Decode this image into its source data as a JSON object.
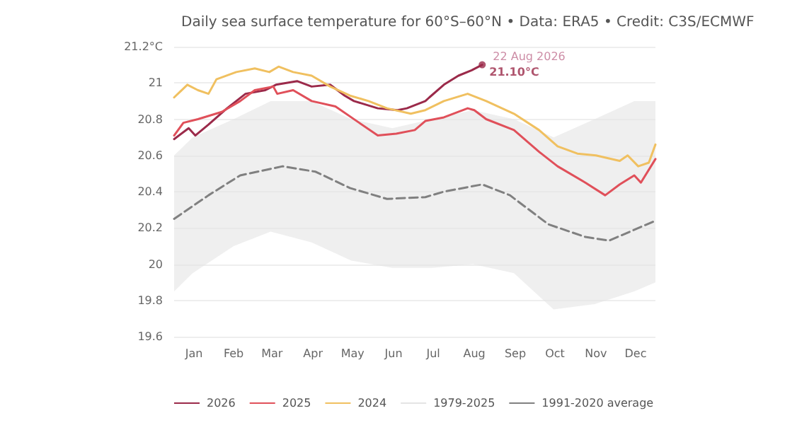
{
  "chart_data": {
    "type": "line",
    "title": "Daily sea surface temperature for 60°S–60°N • Data: ERA5 • Credit: C3S/ECMWF",
    "xlim": [
      "--01-01",
      "--12-31"
    ],
    "xticks": [
      {
        "value": "--01-16",
        "label": "Jan"
      },
      {
        "value": "--02-15",
        "label": "Feb"
      },
      {
        "value": "--03-16",
        "label": "Mar"
      },
      {
        "value": "--04-16",
        "label": "Apr"
      },
      {
        "value": "--05-16",
        "label": "May"
      },
      {
        "value": "--06-16",
        "label": "Jun"
      },
      {
        "value": "--07-16",
        "label": "Jul"
      },
      {
        "value": "--08-16",
        "label": "Aug"
      },
      {
        "value": "--09-16",
        "label": "Sep"
      },
      {
        "value": "--10-16",
        "label": "Oct"
      },
      {
        "value": "--11-16",
        "label": "Nov"
      },
      {
        "value": "--12-16",
        "label": "Dec"
      }
    ],
    "ylim": [
      19.6,
      21.2
    ],
    "yticks": [
      19.6,
      19.8,
      20,
      20.2,
      20.4,
      20.6,
      20.8,
      21,
      {
        "value": 21.2,
        "label": "21.2°C"
      }
    ],
    "grid": "y",
    "legend": "bottom",
    "marker": "none",
    "series": [
      {
        "name": "2026",
        "color": "#9b2a4a",
        "x": [
          "--01-01",
          "--01-12",
          "--01-17",
          "--01-27",
          "--02-10",
          "--02-24",
          "--03-11",
          "--03-19",
          "--04-04",
          "--04-15",
          "--04-29",
          "--05-10",
          "--05-17",
          "--06-04",
          "--06-19",
          "--06-26",
          "--07-10",
          "--07-13",
          "--07-24",
          "--08-04",
          "--08-14",
          "--08-22"
        ],
        "values": [
          20.69,
          20.75,
          20.71,
          20.77,
          20.86,
          20.94,
          20.96,
          20.99,
          21.01,
          20.98,
          20.99,
          20.93,
          20.9,
          20.86,
          20.85,
          20.86,
          20.9,
          20.92,
          20.99,
          21.04,
          21.07,
          21.1
        ]
      },
      {
        "name": "2025",
        "color": "#e0505a",
        "x": [
          "--01-01",
          "--01-08",
          "--01-19",
          "--02-06",
          "--02-20",
          "--03-03",
          "--03-17",
          "--03-20",
          "--04-01",
          "--04-15",
          "--05-03",
          "--05-21",
          "--06-04",
          "--06-18",
          "--07-02",
          "--07-10",
          "--07-24",
          "--08-11",
          "--08-16",
          "--08-25",
          "--09-15",
          "--10-04",
          "--10-18",
          "--11-08",
          "--11-23",
          "--12-04",
          "--12-15",
          "--12-20",
          "--12-31"
        ],
        "values": [
          20.71,
          20.78,
          20.8,
          20.84,
          20.9,
          20.96,
          20.98,
          20.94,
          20.96,
          20.9,
          20.87,
          20.78,
          20.71,
          20.72,
          20.74,
          20.79,
          20.81,
          20.86,
          20.85,
          20.8,
          20.74,
          20.62,
          20.54,
          20.45,
          20.38,
          20.44,
          20.49,
          20.45,
          20.58
        ]
      },
      {
        "name": "2024",
        "color": "#f0c060",
        "x": [
          "--01-01",
          "--01-11",
          "--01-19",
          "--01-27",
          "--02-02",
          "--02-17",
          "--03-03",
          "--03-14",
          "--03-21",
          "--04-01",
          "--04-15",
          "--04-29",
          "--05-14",
          "--05-28",
          "--06-11",
          "--06-29",
          "--07-10",
          "--07-24",
          "--08-11",
          "--08-25",
          "--09-15",
          "--10-04",
          "--10-18",
          "--11-02",
          "--11-16",
          "--12-04",
          "--12-10",
          "--12-18",
          "--12-26",
          "--12-31"
        ],
        "values": [
          20.92,
          20.99,
          20.96,
          20.94,
          21.02,
          21.06,
          21.08,
          21.06,
          21.09,
          21.06,
          21.04,
          20.98,
          20.93,
          20.9,
          20.86,
          20.83,
          20.85,
          20.9,
          20.94,
          20.9,
          20.83,
          20.74,
          20.65,
          20.61,
          20.6,
          20.57,
          20.6,
          20.54,
          20.56,
          20.66
        ]
      },
      {
        "name": "1979-2025",
        "color": "#e4e4e4",
        "x": [
          "--01-01",
          "--01-15",
          "--02-15",
          "--03-15",
          "--04-15",
          "--05-15",
          "--06-15",
          "--07-15",
          "--08-15",
          "--09-15",
          "--10-15",
          "--11-15",
          "--12-15",
          "--12-31"
        ],
        "lower": [
          19.85,
          19.95,
          20.1,
          20.18,
          20.12,
          20.02,
          19.98,
          19.98,
          20.0,
          19.95,
          19.75,
          19.78,
          19.85,
          19.9
        ],
        "upper": [
          20.6,
          20.7,
          20.8,
          20.9,
          20.9,
          20.8,
          20.75,
          20.8,
          20.85,
          20.8,
          20.7,
          20.8,
          20.9,
          20.9
        ],
        "values": [
          null,
          null,
          null,
          null,
          null,
          null,
          null,
          null,
          null,
          null,
          null,
          null,
          null,
          null
        ]
      },
      {
        "name": "1991-2020 average",
        "color": "#808080",
        "line_style": "dashed",
        "x": [
          "--01-01",
          "--01-27",
          "--02-20",
          "--03-24",
          "--04-18",
          "--05-14",
          "--06-11",
          "--07-10",
          "--07-24",
          "--08-22",
          "--09-12",
          "--10-11",
          "--11-08",
          "--11-26",
          "--12-31"
        ],
        "values": [
          20.25,
          20.38,
          20.49,
          20.54,
          20.51,
          20.42,
          20.36,
          20.37,
          20.4,
          20.44,
          20.38,
          20.22,
          20.15,
          20.13,
          20.24
        ]
      }
    ],
    "annotations": [
      {
        "text": "22 Aug 2026",
        "x": "--08-22",
        "y": 21.1
      },
      {
        "text": "21.10°C",
        "x": "--08-22",
        "y": 21.1
      }
    ]
  }
}
